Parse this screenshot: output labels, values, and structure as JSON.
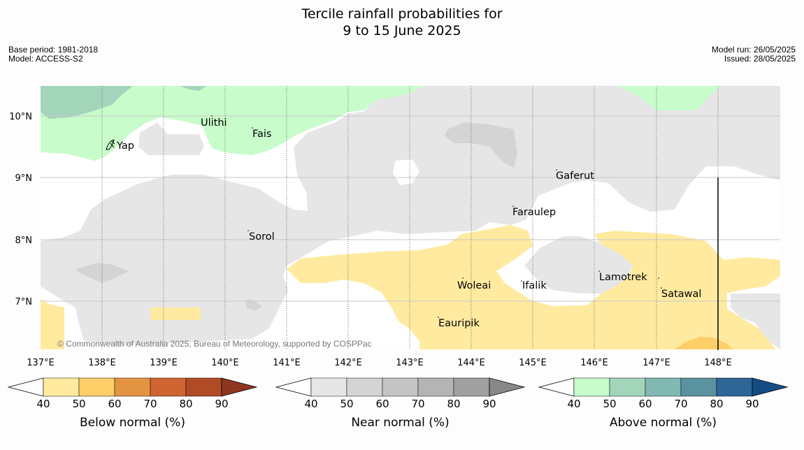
{
  "title": {
    "line1": "Tercile rainfall probabilities for",
    "line2": "9 to 15 June 2025"
  },
  "meta_left": {
    "base_period": "Base period: 1981-2018",
    "model": "Model: ACCESS-S2"
  },
  "meta_right": {
    "model_run": "Model run: 26/05/2025",
    "issued": "Issued: 28/05/2025"
  },
  "map": {
    "lat_labels": [
      "10°N",
      "9°N",
      "8°N",
      "7°N"
    ],
    "lon_labels": [
      "137°E",
      "138°E",
      "139°E",
      "140°E",
      "141°E",
      "142°E",
      "143°E",
      "144°E",
      "145°E",
      "146°E",
      "147°E",
      "148°E"
    ],
    "places": [
      "Yap",
      "Ulithi",
      "Fais",
      "Gaferut",
      "Faraulep",
      "Sorol",
      "Woleai",
      "Ifalik",
      "Lamotrek",
      "Satawal",
      "Eauripik"
    ],
    "credit": "© Commonwealth of Australia 2025, Bureau of Meteorology, supported by COSPPac",
    "colors": {
      "ocean_background": "#ffffff",
      "near_normal_40": "#e6e6e6",
      "near_normal_50": "#d4d4d4",
      "below_normal_40": "#ffeaa0",
      "below_normal_50": "#fece68",
      "above_normal_40": "#c8fcca",
      "above_normal_50": "#a3d5bb"
    }
  },
  "colorbars": [
    {
      "label": "Below normal (%)",
      "ticks": [
        "40",
        "50",
        "60",
        "70",
        "80",
        "90"
      ],
      "colors": [
        "#ffeaa0",
        "#fece68",
        "#e39443",
        "#ce6431",
        "#b04b25",
        "#8e3620"
      ]
    },
    {
      "label": "Near normal (%)",
      "ticks": [
        "40",
        "50",
        "60",
        "70",
        "80",
        "90"
      ],
      "colors": [
        "#e6e6e6",
        "#d4d4d4",
        "#c4c4c4",
        "#b4b4b4",
        "#a0a0a0",
        "#888888"
      ]
    },
    {
      "label": "Above normal (%)",
      "ticks": [
        "40",
        "50",
        "60",
        "70",
        "80",
        "90"
      ],
      "colors": [
        "#c8fcca",
        "#a3d5bb",
        "#82b8b2",
        "#5a92a0",
        "#2f6698",
        "#164c84"
      ]
    }
  ]
}
